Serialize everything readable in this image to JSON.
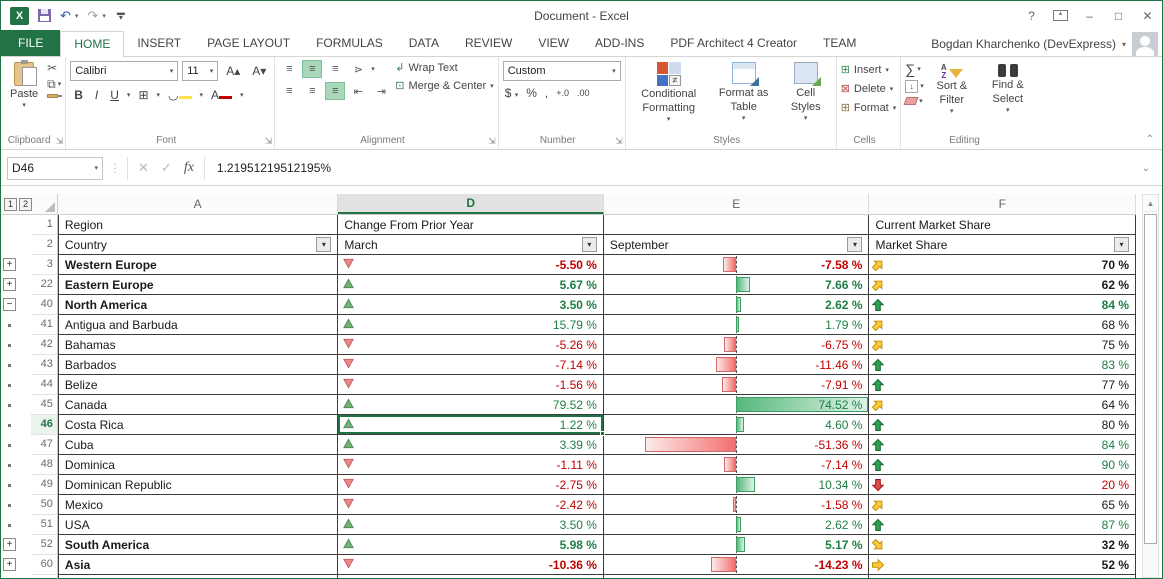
{
  "window": {
    "title": "Document - Excel",
    "help_label": "?",
    "user": "Bogdan Kharchenko (DevExpress)"
  },
  "tabs": {
    "file": "FILE",
    "items": [
      "HOME",
      "INSERT",
      "PAGE LAYOUT",
      "FORMULAS",
      "DATA",
      "REVIEW",
      "VIEW",
      "ADD-INS",
      "PDF Architect 4 Creator",
      "TEAM"
    ],
    "active": "HOME"
  },
  "ribbon": {
    "clipboard": {
      "label": "Clipboard",
      "paste": "Paste"
    },
    "font": {
      "label": "Font",
      "family": "Calibri",
      "size": "11",
      "bold": "B",
      "italic": "I",
      "underline": "U"
    },
    "alignment": {
      "label": "Alignment",
      "wrap": "Wrap Text",
      "merge": "Merge & Center"
    },
    "number": {
      "label": "Number",
      "format": "Custom",
      "currency": "$",
      "percent": "%",
      "comma": ",",
      "inc_decimal": "+.0",
      "dec_decimal": ".00"
    },
    "styles": {
      "label": "Styles",
      "conditional": "Conditional Formatting",
      "format_table": "Format as Table",
      "cell_styles": "Cell Styles"
    },
    "cells": {
      "label": "Cells",
      "items": [
        "Insert",
        "Delete",
        "Format"
      ]
    },
    "editing": {
      "label": "Editing",
      "sort": "Sort & Filter",
      "find": "Find & Select",
      "az_a": "A",
      "az_z": "Z"
    }
  },
  "formula_bar": {
    "name_box": "D46",
    "fx": "fx",
    "value": "1.21951219512195%"
  },
  "grid": {
    "outline_levels": [
      "1",
      "2"
    ],
    "columns": [
      {
        "letter": "A",
        "selected": false
      },
      {
        "letter": "D",
        "selected": true
      },
      {
        "letter": "E",
        "selected": false
      },
      {
        "letter": "F",
        "selected": false
      }
    ],
    "header_row1": {
      "a": "Region",
      "d": "Change From Prior Year",
      "f": "Current Market Share"
    },
    "header_row2": {
      "a": "Country",
      "d": "March",
      "e": "September",
      "f": "Market Share"
    },
    "bar_axis_max": 74.52,
    "rows": [
      {
        "num": "3",
        "outline": "plus",
        "name": "Western Europe",
        "bold": true,
        "trend": "down",
        "march": "-5.50 %",
        "sept_val": -7.58,
        "sept": "-7.58 %",
        "icon": "ne",
        "share": "70 %",
        "share_color": "black",
        "selected": false
      },
      {
        "num": "22",
        "outline": "plus",
        "name": "Eastern Europe",
        "bold": true,
        "trend": "up",
        "march": "5.67 %",
        "sept_val": 7.66,
        "sept": "7.66 %",
        "icon": "ne",
        "share": "62 %",
        "share_color": "black",
        "selected": false
      },
      {
        "num": "40",
        "outline": "minus",
        "name": "North America",
        "bold": true,
        "trend": "up",
        "march": "3.50 %",
        "sept_val": 2.62,
        "sept": "2.62 %",
        "icon": "up",
        "share": "84 %",
        "share_color": "green",
        "selected": false
      },
      {
        "num": "41",
        "outline": "dot",
        "name": "Antigua and Barbuda",
        "bold": false,
        "trend": "up",
        "march": "15.79 %",
        "sept_val": 1.79,
        "sept": "1.79 %",
        "icon": "ne",
        "share": "68 %",
        "share_color": "black",
        "selected": false
      },
      {
        "num": "42",
        "outline": "dot",
        "name": "Bahamas",
        "bold": false,
        "trend": "down",
        "march": "-5.26 %",
        "sept_val": -6.75,
        "sept": "-6.75 %",
        "icon": "ne",
        "share": "75 %",
        "share_color": "black",
        "selected": false
      },
      {
        "num": "43",
        "outline": "dot",
        "name": "Barbados",
        "bold": false,
        "trend": "down",
        "march": "-7.14 %",
        "sept_val": -11.46,
        "sept": "-11.46 %",
        "icon": "up",
        "share": "83 %",
        "share_color": "green",
        "selected": false
      },
      {
        "num": "44",
        "outline": "dot",
        "name": "Belize",
        "bold": false,
        "trend": "down",
        "march": "-1.56 %",
        "sept_val": -7.91,
        "sept": "-7.91 %",
        "icon": "up",
        "share": "77 %",
        "share_color": "black",
        "selected": false
      },
      {
        "num": "45",
        "outline": "dot",
        "name": "Canada",
        "bold": false,
        "trend": "up",
        "march": "79.52 %",
        "sept_val": 74.52,
        "sept": "74.52 %",
        "icon": "ne",
        "share": "64 %",
        "share_color": "black",
        "selected": false
      },
      {
        "num": "46",
        "outline": "dot",
        "name": "Costa Rica",
        "bold": false,
        "trend": "up",
        "march": "1.22 %",
        "sept_val": 4.6,
        "sept": "4.60 %",
        "icon": "up",
        "share": "80 %",
        "share_color": "black",
        "selected": true
      },
      {
        "num": "47",
        "outline": "dot",
        "name": "Cuba",
        "bold": false,
        "trend": "up",
        "march": "3.39 %",
        "sept_val": -51.36,
        "sept": "-51.36 %",
        "icon": "up",
        "share": "84 %",
        "share_color": "green",
        "selected": false
      },
      {
        "num": "48",
        "outline": "dot",
        "name": "Dominica",
        "bold": false,
        "trend": "down",
        "march": "-1.11 %",
        "sept_val": -7.14,
        "sept": "-7.14 %",
        "icon": "up",
        "share": "90 %",
        "share_color": "green",
        "selected": false
      },
      {
        "num": "49",
        "outline": "dot",
        "name": "Dominican Republic",
        "bold": false,
        "trend": "down",
        "march": "-2.75 %",
        "sept_val": 10.34,
        "sept": "10.34 %",
        "icon": "down",
        "share": "20 %",
        "share_color": "red",
        "selected": false
      },
      {
        "num": "50",
        "outline": "dot",
        "name": "Mexico",
        "bold": false,
        "trend": "down",
        "march": "-2.42 %",
        "sept_val": -1.58,
        "sept": "-1.58 %",
        "icon": "ne",
        "share": "65 %",
        "share_color": "black",
        "selected": false
      },
      {
        "num": "51",
        "outline": "dot",
        "name": "USA",
        "bold": false,
        "trend": "up",
        "march": "3.50 %",
        "sept_val": 2.62,
        "sept": "2.62 %",
        "icon": "up",
        "share": "87 %",
        "share_color": "green",
        "selected": false
      },
      {
        "num": "52",
        "outline": "plus",
        "name": "South America",
        "bold": true,
        "trend": "up",
        "march": "5.98 %",
        "sept_val": 5.17,
        "sept": "5.17 %",
        "icon": "se",
        "share": "32 %",
        "share_color": "black",
        "selected": false
      },
      {
        "num": "60",
        "outline": "plus",
        "name": "Asia",
        "bold": true,
        "trend": "down",
        "march": "-10.36 %",
        "sept_val": -14.23,
        "sept": "-14.23 %",
        "icon": "right",
        "share": "52 %",
        "share_color": "black",
        "selected": false
      }
    ]
  },
  "colors": {
    "excel_green": "#217346",
    "negative_text": "#c00000",
    "positive_text": "#1e7e45",
    "bar_positive": "#57b87c",
    "bar_negative": "#f2706e",
    "arrow_green": "#2f9e4f",
    "arrow_yellow": "#ffc83d",
    "arrow_red": "#e04b4b"
  }
}
